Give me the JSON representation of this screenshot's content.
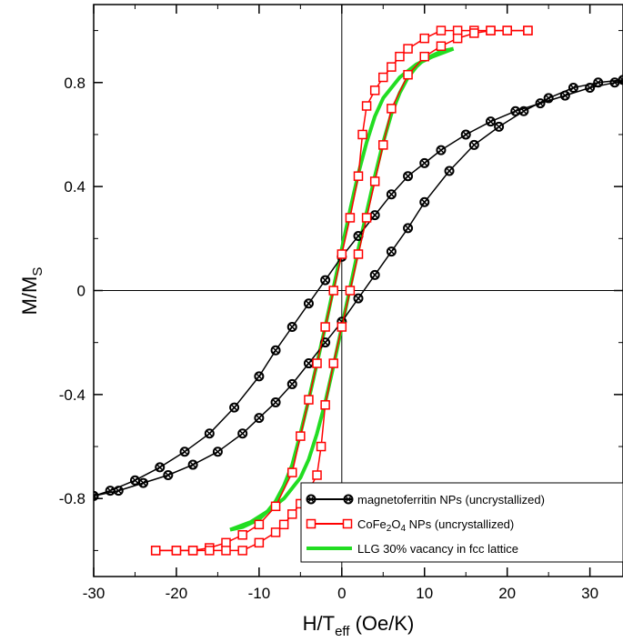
{
  "chart_data": {
    "type": "line",
    "xlabel": "H/T",
    "xlabel_sub": "eff",
    "xlabel_unit": " (Oe/K)",
    "ylabel": "M/M",
    "ylabel_sub": "S",
    "xlim": [
      -30,
      34
    ],
    "ylim": [
      -1.1,
      1.1
    ],
    "x_ticks": [
      -30,
      -20,
      -10,
      0,
      10,
      20,
      30
    ],
    "x_tick_labels": [
      "-30",
      "-20",
      "-10",
      "0",
      "10",
      "20",
      "30"
    ],
    "y_ticks": [
      -0.8,
      -0.4,
      0,
      0.4,
      0.8
    ],
    "y_tick_labels": [
      "-0.8",
      "-0.4",
      "0",
      "0.4",
      "0.8"
    ],
    "grid": false,
    "zero_lines": true,
    "legend_position": "bottom-right",
    "series": [
      {
        "name": "magnetoferritin NPs (uncrystallized)",
        "color": "#000000",
        "marker": "circle-cross",
        "branches": [
          {
            "x": [
              36.5,
              33,
              30,
              27,
              24,
              21,
              18,
              15,
              12,
              10,
              8,
              6,
              4,
              2,
              0,
              -2,
              -4,
              -6,
              -8,
              -10,
              -13,
              -16,
              -19,
              -22,
              -25,
              -28,
              -30
            ],
            "y": [
              0.82,
              0.8,
              0.78,
              0.75,
              0.72,
              0.69,
              0.65,
              0.6,
              0.54,
              0.49,
              0.44,
              0.37,
              0.29,
              0.21,
              0.13,
              0.04,
              -0.05,
              -0.14,
              -0.23,
              -0.33,
              -0.45,
              -0.55,
              -0.62,
              -0.68,
              -0.73,
              -0.77,
              -0.79
            ]
          },
          {
            "x": [
              -30,
              -27,
              -24,
              -21,
              -18,
              -15,
              -12,
              -10,
              -8,
              -6,
              -4,
              -2,
              0,
              2,
              4,
              6,
              8,
              10,
              13,
              16,
              19,
              22,
              25,
              28,
              31,
              34,
              36.5
            ],
            "y": [
              -0.79,
              -0.77,
              -0.74,
              -0.71,
              -0.67,
              -0.62,
              -0.55,
              -0.49,
              -0.43,
              -0.36,
              -0.28,
              -0.2,
              -0.12,
              -0.03,
              0.06,
              0.15,
              0.24,
              0.34,
              0.46,
              0.56,
              0.63,
              0.69,
              0.74,
              0.78,
              0.8,
              0.81,
              0.82
            ]
          }
        ]
      },
      {
        "name": "CoFe₂O₄ NPs (uncrystallized)",
        "name_base": "CoFe",
        "name_sub1": "2",
        "name_mid": "O",
        "name_sub2": "4",
        "name_tail": " NPs (uncrystallized)",
        "color": "#ff0000",
        "marker": "square",
        "branches": [
          {
            "x": [
              22.5,
              20,
              18,
              16,
              14,
              12,
              10,
              8,
              7,
              6,
              5,
              4,
              3,
              2.5,
              2,
              1,
              0,
              -1,
              -2,
              -3,
              -4,
              -5,
              -6,
              -8,
              -10,
              -12,
              -14,
              -16,
              -18,
              -20,
              -22.5
            ],
            "y": [
              1.0,
              1.0,
              1.0,
              1.0,
              1.0,
              1.0,
              0.97,
              0.93,
              0.9,
              0.86,
              0.82,
              0.77,
              0.71,
              0.6,
              0.44,
              0.28,
              0.14,
              0.0,
              -0.14,
              -0.28,
              -0.42,
              -0.56,
              -0.7,
              -0.83,
              -0.9,
              -0.94,
              -0.97,
              -0.99,
              -1.0,
              -1.0,
              -1.0
            ]
          },
          {
            "x": [
              -22.5,
              -20,
              -18,
              -16,
              -14,
              -12,
              -10,
              -8,
              -7,
              -6,
              -5,
              -4,
              -3,
              -2.5,
              -2,
              -1,
              0,
              1,
              2,
              3,
              4,
              5,
              6,
              8,
              10,
              12,
              14,
              16,
              18,
              20,
              22.5
            ],
            "y": [
              -1.0,
              -1.0,
              -1.0,
              -1.0,
              -1.0,
              -1.0,
              -0.97,
              -0.93,
              -0.9,
              -0.86,
              -0.82,
              -0.77,
              -0.71,
              -0.6,
              -0.44,
              -0.28,
              -0.14,
              0.0,
              0.14,
              0.28,
              0.42,
              0.56,
              0.7,
              0.83,
              0.9,
              0.94,
              0.97,
              0.99,
              1.0,
              1.0,
              1.0
            ]
          }
        ]
      },
      {
        "name": "LLG 30% vacancy in fcc lattice",
        "color": "#22dd22",
        "marker": "none",
        "branches": [
          {
            "x": [
              13.5,
              11,
              9,
              7,
              5,
              4,
              3,
              2,
              1,
              0,
              -1,
              -2,
              -3,
              -4,
              -5,
              -6,
              -7,
              -8,
              -9,
              -10,
              -12,
              -13.5
            ],
            "y": [
              0.93,
              0.9,
              0.87,
              0.82,
              0.74,
              0.67,
              0.57,
              0.45,
              0.31,
              0.16,
              0.01,
              -0.14,
              -0.28,
              -0.42,
              -0.55,
              -0.67,
              -0.75,
              -0.81,
              -0.85,
              -0.88,
              -0.91,
              -0.92
            ]
          },
          {
            "x": [
              -13.5,
              -11,
              -9,
              -7,
              -5,
              -4,
              -3,
              -2,
              -1,
              0,
              1,
              2,
              3,
              4,
              5,
              6,
              7,
              8,
              9,
              10,
              12,
              13.5
            ],
            "y": [
              -0.92,
              -0.89,
              -0.85,
              -0.8,
              -0.72,
              -0.65,
              -0.55,
              -0.43,
              -0.29,
              -0.14,
              0.01,
              0.16,
              0.3,
              0.44,
              0.57,
              0.68,
              0.76,
              0.82,
              0.86,
              0.89,
              0.92,
              0.93
            ]
          }
        ]
      }
    ]
  }
}
